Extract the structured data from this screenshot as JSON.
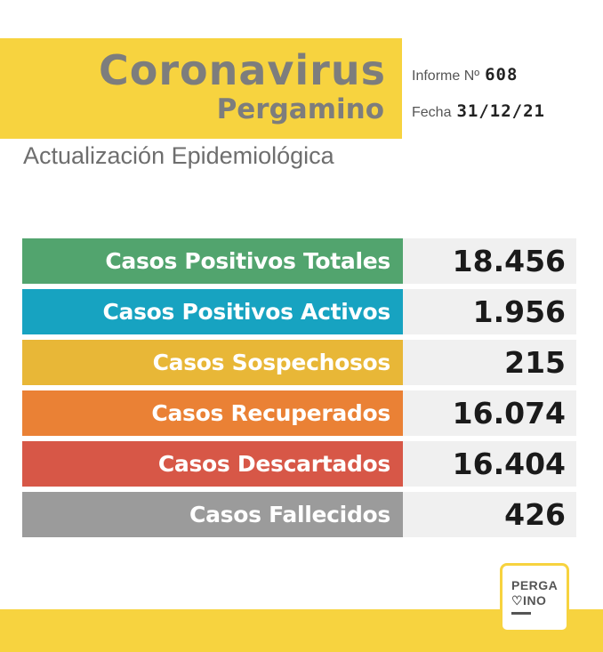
{
  "header": {
    "title": "Coronavirus",
    "city": "Pergamino",
    "informe_label": "Informe Nº",
    "informe_value": "608",
    "fecha_label": "Fecha",
    "fecha_value": "31/12/21",
    "subtitle": "Actualización Epidemiológica"
  },
  "stats": [
    {
      "label": "Casos Positivos Totales",
      "value": "18.456",
      "color": "#52a46e"
    },
    {
      "label": "Casos Positivos Activos",
      "value": "1.956",
      "color": "#17a3c1"
    },
    {
      "label": "Casos Sospechosos",
      "value": "215",
      "color": "#e8b737"
    },
    {
      "label": "Casos Recuperados",
      "value": "16.074",
      "color": "#ea8135"
    },
    {
      "label": "Casos Descartados",
      "value": "16.404",
      "color": "#d75747"
    },
    {
      "label": "Casos Fallecidos",
      "value": "426",
      "color": "#9b9b9b"
    }
  ],
  "logo": {
    "line1": "PERGA",
    "line2": "♡INO"
  },
  "colors": {
    "brand_yellow": "#f7d33f",
    "value_bg": "#f0f0f0"
  }
}
